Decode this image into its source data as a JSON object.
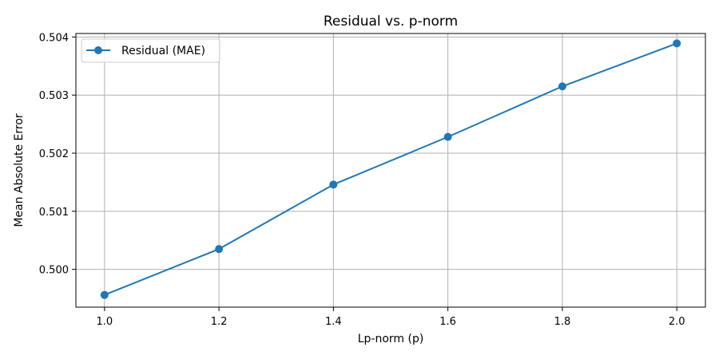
{
  "chart_data": {
    "type": "line",
    "title": "Residual vs. p-norm",
    "xlabel": "Lp-norm (p)",
    "ylabel": "Mean Absolute Error",
    "xlim": [
      0.95,
      2.05
    ],
    "ylim": [
      0.49935,
      0.50406
    ],
    "xticks": [
      1.0,
      1.2,
      1.4,
      1.6,
      1.8,
      2.0
    ],
    "xtick_labels": [
      "1.0",
      "1.2",
      "1.4",
      "1.6",
      "1.8",
      "2.0"
    ],
    "yticks": [
      0.5,
      0.501,
      0.502,
      0.503,
      0.504
    ],
    "ytick_labels": [
      "0.500",
      "0.501",
      "0.502",
      "0.503",
      "0.504"
    ],
    "grid": true,
    "legend_position": "top-left",
    "series": [
      {
        "name": "Residual (MAE)",
        "color": "#1f77b4",
        "marker": "circle",
        "x": [
          1.0,
          1.2,
          1.4,
          1.6,
          1.8,
          2.0
        ],
        "y": [
          0.49956,
          0.50035,
          0.50146,
          0.50228,
          0.50315,
          0.50389
        ]
      }
    ]
  }
}
